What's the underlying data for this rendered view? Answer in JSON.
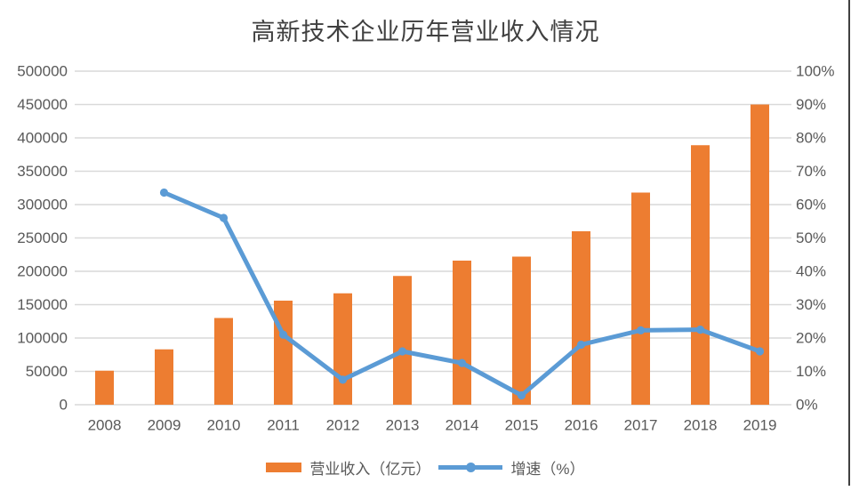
{
  "title": "高新技术企业历年营业收入情况",
  "legend": {
    "bar_label": "营业收入（亿元）",
    "line_label": "增速（%）"
  },
  "colors": {
    "bar": "#ED7D31",
    "line": "#5B9BD5",
    "gridline": "#D9D9D9",
    "axis_text": "#595959",
    "title_text": "#404040",
    "right_border": "#404040",
    "background": "#FFFFFF"
  },
  "chart_data": {
    "type": "combo",
    "title": "高新技术企业历年营业收入情况",
    "categories": [
      "2008",
      "2009",
      "2010",
      "2011",
      "2012",
      "2013",
      "2014",
      "2015",
      "2016",
      "2017",
      "2018",
      "2019"
    ],
    "series": [
      {
        "name": "营业收入（亿元）",
        "type": "bar",
        "axis": "left",
        "values": [
          51000,
          83000,
          130000,
          156000,
          167000,
          193000,
          216000,
          222000,
          260000,
          318000,
          389000,
          450000
        ]
      },
      {
        "name": "增速（%）",
        "type": "line",
        "axis": "right",
        "values": [
          null,
          63.6,
          56,
          21,
          7.5,
          16,
          12.5,
          2.8,
          18,
          22.3,
          22.5,
          16
        ]
      }
    ],
    "left_axis": {
      "min": 0,
      "max": 500000,
      "step": 50000,
      "tick_labels": [
        "0",
        "50000",
        "100000",
        "150000",
        "200000",
        "250000",
        "300000",
        "350000",
        "400000",
        "450000",
        "500000"
      ]
    },
    "right_axis": {
      "min": 0,
      "max": 100,
      "step": 10,
      "tick_labels": [
        "0%",
        "10%",
        "20%",
        "30%",
        "40%",
        "50%",
        "60%",
        "70%",
        "80%",
        "90%",
        "100%"
      ]
    },
    "grid": true,
    "legend_position": "bottom"
  }
}
